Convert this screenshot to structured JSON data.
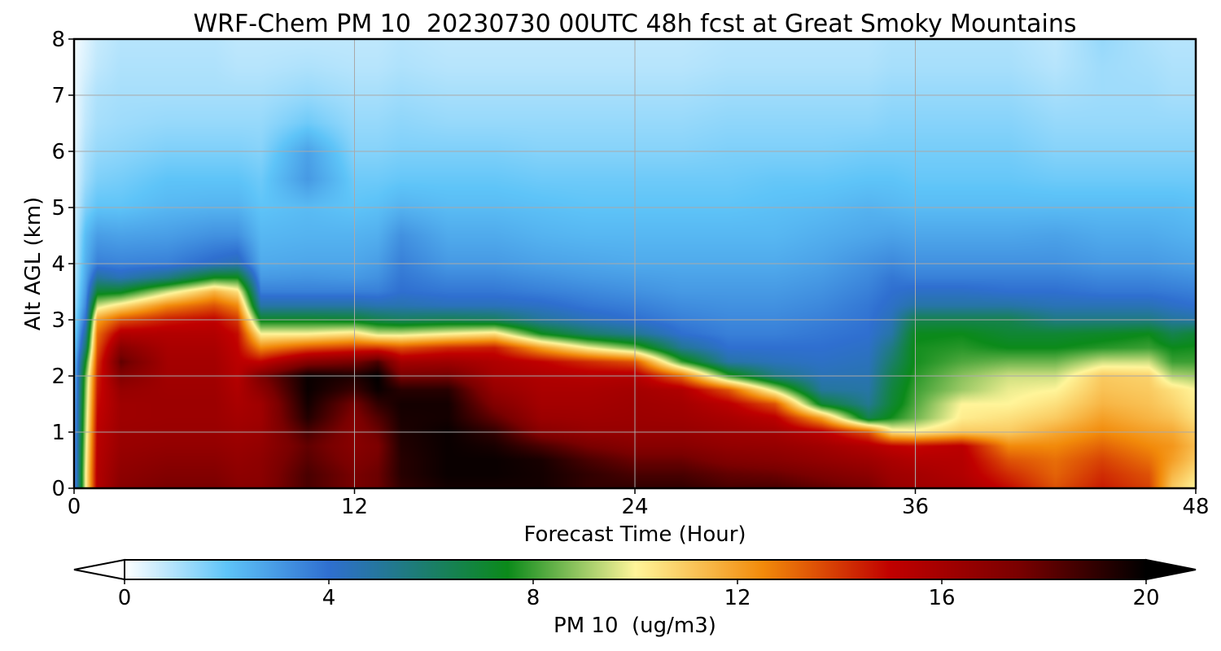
{
  "chart_data": {
    "type": "heatmap",
    "title": "WRF-Chem PM 10  20230730 00UTC 48h fcst at Great Smoky Mountains",
    "xlabel": "Forecast Time (Hour)",
    "ylabel": "Alt AGL (km)",
    "xlim": [
      0,
      48
    ],
    "ylim": [
      0,
      8
    ],
    "x_ticks": [
      "0",
      "12",
      "24",
      "36",
      "48"
    ],
    "y_ticks": [
      "0",
      "1",
      "2",
      "3",
      "4",
      "5",
      "6",
      "7",
      "8"
    ],
    "grid": true,
    "colorbar": {
      "label": "PM 10  (ug/m3)",
      "range": [
        0,
        20
      ],
      "ticks": [
        "0",
        "4",
        "8",
        "12",
        "16",
        "20"
      ],
      "extend": "both",
      "stops": [
        {
          "value": 0,
          "color": "#ffffff"
        },
        {
          "value": 2,
          "color": "#5ec4f8"
        },
        {
          "value": 4,
          "color": "#2f6fd0"
        },
        {
          "value": 7.5,
          "color": "#0b8a1a"
        },
        {
          "value": 10,
          "color": "#fff59a"
        },
        {
          "value": 12.5,
          "color": "#f28a0a"
        },
        {
          "value": 15,
          "color": "#c00000"
        },
        {
          "value": 17.5,
          "color": "#7a0000"
        },
        {
          "value": 20,
          "color": "#000000"
        }
      ]
    },
    "hours": [
      0,
      0.5,
      1,
      2,
      4,
      6,
      7,
      8,
      10,
      12,
      13,
      14,
      16,
      18,
      20,
      22,
      24,
      26,
      28,
      30,
      32,
      34,
      35,
      36,
      38,
      40,
      42,
      44,
      46,
      47,
      48
    ],
    "altitudes_km": [
      0,
      0.25,
      0.5,
      0.75,
      1,
      1.25,
      1.5,
      1.75,
      2,
      2.25,
      2.5,
      2.75,
      3,
      3.25,
      3.5,
      3.75,
      4,
      4.5,
      5,
      5.5,
      6,
      6.5,
      7,
      7.5,
      8
    ],
    "profiles": [
      [
        2.5,
        2.5,
        2.5,
        2.5,
        2.4,
        2.3,
        2.2,
        2,
        1.9,
        1.8,
        1.6,
        1.4,
        1.2,
        1,
        0.9,
        0.8,
        0.7,
        0.6,
        0.5,
        0.4,
        0.3,
        0.2,
        0.2,
        0.2,
        0.1
      ],
      [
        10,
        10,
        9.8,
        9.6,
        9.4,
        9.2,
        9,
        8.8,
        8.5,
        7.5,
        6,
        5,
        4,
        3.4,
        3,
        2.7,
        2.5,
        2.2,
        1.6,
        1.2,
        1,
        0.8,
        0.7,
        0.5,
        0.4
      ],
      [
        15.5,
        15.5,
        15.4,
        15.3,
        15.2,
        15,
        14.8,
        14.6,
        14.4,
        14,
        13.5,
        13,
        12,
        9.5,
        7,
        5,
        3.6,
        2.9,
        2,
        1.6,
        1.3,
        1.1,
        1,
        0.8,
        0.7
      ],
      [
        17,
        16.8,
        16.6,
        16.4,
        16.3,
        16.2,
        16.2,
        16.5,
        17.2,
        18,
        17,
        15.5,
        13.5,
        10.5,
        7.2,
        4.5,
        3.5,
        2.8,
        2,
        1.7,
        1.4,
        1.2,
        1.1,
        1,
        0.9
      ],
      [
        17.5,
        17.2,
        16.9,
        16.6,
        16.4,
        16.3,
        16.3,
        16.2,
        16.1,
        16,
        15.8,
        15.5,
        14.5,
        12.5,
        9.5,
        5.5,
        3.6,
        2.9,
        2.3,
        2,
        1.6,
        1.3,
        1.1,
        1,
        0.9
      ],
      [
        17.5,
        17.2,
        16.9,
        16.6,
        16.4,
        16.3,
        16.3,
        16.2,
        16.1,
        16,
        15.8,
        15.5,
        15,
        13.5,
        11.5,
        7.5,
        4.2,
        3.2,
        2.4,
        2,
        1.6,
        1.3,
        1.1,
        1,
        0.9
      ],
      [
        17,
        16.8,
        16.6,
        16.4,
        16.2,
        16,
        15.8,
        15.6,
        15.4,
        15.2,
        15,
        14.8,
        14,
        12.5,
        10.5,
        7.5,
        4.5,
        3.2,
        2.4,
        2,
        1.6,
        1.3,
        1.1,
        0.9,
        0.8
      ],
      [
        17,
        16.9,
        16.8,
        16.6,
        16.4,
        16.2,
        16.2,
        16.8,
        17.4,
        15,
        12.5,
        10,
        7.2,
        4.8,
        3.6,
        3,
        2.6,
        2.3,
        2,
        1.8,
        1.5,
        1.3,
        1.1,
        0.9,
        0.8
      ],
      [
        18.5,
        18.5,
        18.2,
        18,
        18.5,
        19.3,
        19.6,
        19.8,
        19.8,
        17,
        13.5,
        10,
        7.2,
        4.8,
        3.6,
        3.1,
        2.7,
        2.4,
        2.2,
        3,
        2.8,
        1.8,
        1.3,
        1,
        0.8
      ],
      [
        17.5,
        17.5,
        17.2,
        17,
        17,
        17.2,
        17.6,
        18.8,
        19.4,
        17.5,
        14,
        10.5,
        7,
        4.8,
        3.6,
        3,
        2.7,
        2.4,
        2,
        1.8,
        1.5,
        1.3,
        1.1,
        0.9,
        0.8
      ],
      [
        17.8,
        17.8,
        17.6,
        17.4,
        17.8,
        18.3,
        19,
        19.8,
        20,
        18.5,
        14,
        9.5,
        6.5,
        4.6,
        3.6,
        3.2,
        2.9,
        2.5,
        2.1,
        1.8,
        1.5,
        1.3,
        1.1,
        0.9,
        0.8
      ],
      [
        19,
        19.2,
        19.2,
        19.3,
        19.4,
        19.5,
        19.6,
        19.2,
        17.5,
        16,
        13.5,
        9.5,
        6.2,
        4.6,
        4,
        3.8,
        3.6,
        3.2,
        2.4,
        1.9,
        1.6,
        1.4,
        1.2,
        1,
        0.9
      ],
      [
        19.6,
        19.8,
        19.8,
        19.8,
        19.8,
        19.6,
        19.6,
        19.2,
        17.6,
        16.2,
        14.2,
        10,
        6.4,
        4.4,
        3.8,
        3.4,
        3,
        2.6,
        2.2,
        1.9,
        1.6,
        1.3,
        1.1,
        0.9,
        0.8
      ],
      [
        19.6,
        19.8,
        19.8,
        19.5,
        19,
        18,
        17.2,
        16.5,
        16,
        15.6,
        14.5,
        10.5,
        6.2,
        4.4,
        3.8,
        3.4,
        3,
        2.6,
        2.2,
        1.9,
        1.6,
        1.3,
        1.1,
        0.9,
        0.8
      ],
      [
        19.6,
        19.6,
        19.5,
        18.5,
        17,
        16.3,
        16,
        15.8,
        15.6,
        15,
        12,
        7.5,
        5,
        4.2,
        3.6,
        3.2,
        2.8,
        2.4,
        2.1,
        1.8,
        1.5,
        1.3,
        1.1,
        0.9,
        0.8
      ],
      [
        19,
        19,
        18.5,
        17.5,
        16.5,
        16.2,
        16,
        15.8,
        15.4,
        14.2,
        10,
        6,
        4.4,
        3.8,
        3.4,
        3,
        2.7,
        2.3,
        2,
        1.8,
        1.5,
        1.3,
        1.1,
        0.9,
        0.8
      ],
      [
        19,
        18.5,
        17.8,
        17,
        16.5,
        16.3,
        16.2,
        16,
        15.5,
        13.5,
        8.5,
        5.2,
        4,
        3.6,
        3.2,
        2.9,
        2.6,
        2.3,
        2,
        1.8,
        1.5,
        1.3,
        1.1,
        0.9,
        0.8
      ],
      [
        19,
        18.5,
        17.8,
        17,
        16.5,
        16.2,
        16,
        15.6,
        13,
        8,
        5.2,
        4,
        3.6,
        3.3,
        3,
        2.8,
        2.6,
        2.3,
        2,
        1.8,
        1.5,
        1.3,
        1.1,
        0.9,
        0.8
      ],
      [
        18.5,
        18,
        17.2,
        16.6,
        16.2,
        15.8,
        15.2,
        13.5,
        8,
        4.8,
        4,
        3.6,
        3.4,
        3.2,
        3,
        2.8,
        2.6,
        2.3,
        2,
        1.8,
        1.6,
        1.4,
        1.2,
        1,
        0.9
      ],
      [
        18.5,
        17.8,
        17,
        16.5,
        16,
        15.2,
        13.5,
        9.5,
        5.5,
        4.4,
        4,
        3.6,
        3.4,
        3.2,
        3,
        2.8,
        2.6,
        2.3,
        2.1,
        1.9,
        1.6,
        1.4,
        1.2,
        1,
        0.9
      ],
      [
        18,
        17.3,
        16.6,
        16.1,
        15.2,
        12,
        7,
        5,
        4.5,
        4.2,
        4,
        3.8,
        3.6,
        3.4,
        3.2,
        3,
        2.8,
        2.5,
        2.2,
        1.9,
        1.6,
        1.4,
        1.2,
        1,
        0.9
      ],
      [
        17.5,
        16.8,
        16.2,
        15.5,
        13.5,
        6.5,
        5.2,
        4.8,
        4.6,
        4.4,
        4.2,
        4,
        3.9,
        3.8,
        3.6,
        3.4,
        3.2,
        2.7,
        2.4,
        2,
        1.7,
        1.4,
        1.2,
        1,
        0.9
      ],
      [
        16.5,
        16.2,
        15.8,
        15,
        10.5,
        7.6,
        7,
        6.8,
        6.5,
        6,
        5.5,
        4.8,
        4.5,
        4.2,
        4,
        3.8,
        3.4,
        2.8,
        2.3,
        2,
        1.7,
        1.5,
        1.3,
        1.1,
        1
      ],
      [
        16.2,
        16,
        15.5,
        14.8,
        10.2,
        8.5,
        8.2,
        8,
        7.8,
        7.6,
        7.6,
        7.4,
        6.5,
        4.8,
        4.2,
        3.6,
        3.2,
        2.7,
        2.2,
        1.9,
        1.7,
        1.5,
        1.3,
        1.1,
        1
      ],
      [
        15.8,
        15.5,
        15.4,
        15.2,
        11,
        10.2,
        10,
        9,
        8.8,
        8.2,
        7.8,
        7.5,
        6.5,
        4.8,
        4.2,
        3.6,
        3.2,
        2.7,
        2.2,
        1.9,
        1.7,
        1.5,
        1.3,
        1.1,
        1
      ],
      [
        14.8,
        14.2,
        13.5,
        12.5,
        11,
        10.5,
        10,
        9.8,
        9.5,
        8.5,
        7.5,
        7,
        6.5,
        4.8,
        4,
        3.6,
        3.2,
        2.7,
        2.2,
        1.9,
        1.7,
        1.5,
        1.3,
        1.1,
        1
      ],
      [
        13.5,
        13.2,
        13,
        12.5,
        11.8,
        11,
        10.5,
        10,
        9.5,
        8.5,
        7.5,
        7,
        5.5,
        4.5,
        4,
        3.6,
        3.2,
        2.8,
        2.2,
        1.8,
        1.5,
        1.3,
        1.1,
        0.9,
        0.8
      ],
      [
        14.5,
        14.2,
        13.8,
        13.2,
        12.5,
        12,
        11.5,
        11.2,
        11,
        9.5,
        7.8,
        7.2,
        5.5,
        4.5,
        3.8,
        3.4,
        3,
        2.6,
        2.2,
        1.8,
        1.5,
        1.3,
        1.2,
        1.2,
        1.3
      ],
      [
        13.8,
        13.5,
        13,
        12.5,
        12,
        11.5,
        11.2,
        11,
        10.8,
        9.5,
        8,
        7.5,
        5.5,
        4.5,
        3.8,
        3.4,
        3,
        2.6,
        2.2,
        1.8,
        1.5,
        1.3,
        1.2,
        1.1,
        1
      ],
      [
        11,
        11.5,
        12,
        12.2,
        11.8,
        11.2,
        10.8,
        10.5,
        9.2,
        8,
        7.5,
        6.5,
        5,
        4.2,
        3.7,
        3.3,
        2.9,
        2.5,
        2.2,
        1.8,
        1.5,
        1.3,
        1.1,
        1,
        0.9
      ],
      [
        10,
        10.5,
        11,
        11.3,
        11,
        10.5,
        10.2,
        10,
        9,
        8,
        7.6,
        7,
        4.8,
        4,
        3.6,
        3.2,
        2.8,
        2.4,
        2.1,
        1.8,
        1.5,
        1.3,
        1.1,
        1,
        0.9
      ]
    ]
  }
}
